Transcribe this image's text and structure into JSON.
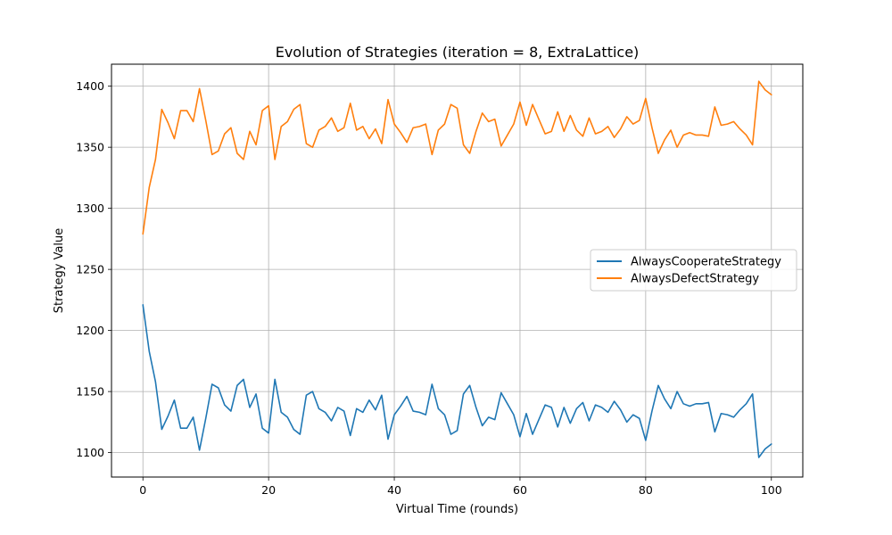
{
  "chart_data": {
    "type": "line",
    "title": "Evolution of Strategies (iteration = 8, ExtraLattice)",
    "xlabel": "Virtual Time (rounds)",
    "ylabel": "Strategy Value",
    "xlim": [
      -5,
      105
    ],
    "ylim": [
      1080,
      1418
    ],
    "xticks": [
      0,
      20,
      40,
      60,
      80,
      100
    ],
    "yticks": [
      1100,
      1150,
      1200,
      1250,
      1300,
      1350,
      1400
    ],
    "grid": true,
    "legend_position": "center-right",
    "colors": [
      "#1f77b4",
      "#ff7f0e"
    ],
    "series": [
      {
        "name": "AlwaysCooperateStrategy",
        "values": [
          1221,
          1183,
          1158,
          1119,
          1130,
          1143,
          1120,
          1120,
          1129,
          1102,
          1128,
          1156,
          1153,
          1139,
          1134,
          1155,
          1160,
          1137,
          1148,
          1120,
          1116,
          1160,
          1133,
          1129,
          1119,
          1115,
          1147,
          1150,
          1136,
          1133,
          1126,
          1137,
          1134,
          1114,
          1136,
          1133,
          1143,
          1135,
          1147,
          1111,
          1131,
          1138,
          1146,
          1134,
          1133,
          1131,
          1156,
          1136,
          1131,
          1115,
          1118,
          1148,
          1155,
          1137,
          1122,
          1129,
          1127,
          1149,
          1140,
          1131,
          1113,
          1132,
          1115,
          1127,
          1139,
          1137,
          1121,
          1137,
          1124,
          1136,
          1141,
          1126,
          1139,
          1137,
          1133,
          1142,
          1135,
          1125,
          1131,
          1128,
          1110,
          1134,
          1155,
          1144,
          1136,
          1150,
          1140,
          1138,
          1140,
          1140,
          1141,
          1117,
          1132,
          1131,
          1129,
          1135,
          1140,
          1148,
          1096,
          1103,
          1107
        ]
      },
      {
        "name": "AlwaysDefectStrategy",
        "values": [
          1279,
          1317,
          1340,
          1381,
          1370,
          1357,
          1380,
          1380,
          1371,
          1398,
          1372,
          1344,
          1347,
          1361,
          1366,
          1345,
          1340,
          1363,
          1352,
          1380,
          1384,
          1340,
          1367,
          1371,
          1381,
          1385,
          1353,
          1350,
          1364,
          1367,
          1374,
          1363,
          1366,
          1386,
          1364,
          1367,
          1357,
          1365,
          1353,
          1389,
          1369,
          1362,
          1354,
          1366,
          1367,
          1369,
          1344,
          1364,
          1369,
          1385,
          1382,
          1352,
          1345,
          1363,
          1378,
          1371,
          1373,
          1351,
          1360,
          1369,
          1387,
          1368,
          1385,
          1373,
          1361,
          1363,
          1379,
          1363,
          1376,
          1364,
          1359,
          1374,
          1361,
          1363,
          1367,
          1358,
          1365,
          1375,
          1369,
          1372,
          1390,
          1366,
          1345,
          1356,
          1364,
          1350,
          1360,
          1362,
          1360,
          1360,
          1359,
          1383,
          1368,
          1369,
          1371,
          1365,
          1360,
          1352,
          1404,
          1397,
          1393
        ]
      }
    ]
  }
}
